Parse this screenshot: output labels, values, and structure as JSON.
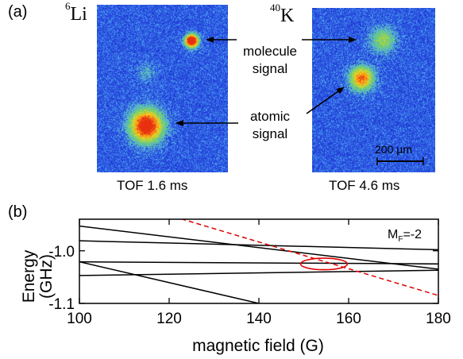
{
  "panel_a": {
    "label": "(a)",
    "left_image": {
      "species_mass": "6",
      "species_symbol": "Li",
      "caption": "TOF 1.6 ms"
    },
    "right_image": {
      "species_mass": "40",
      "species_symbol": "K",
      "caption": "TOF 4.6 ms",
      "scale_bar": "200 µm"
    },
    "annotations": {
      "molecule_line1": "molecule",
      "molecule_line2": "signal",
      "atomic_line1": "atomic",
      "atomic_line2": "signal"
    },
    "colors": {
      "background": "#1c2fd0",
      "noise": "#4aa0ff",
      "cloud_core": "#e83010",
      "cloud_mid": "#ffd21a",
      "cloud_edge": "#6ed46a"
    }
  },
  "panel_b": {
    "label": "(b)",
    "annotation_prefix": "M",
    "annotation_sub": "F",
    "annotation_value": "=-2",
    "colors": {
      "lines": "#000000",
      "dashed": "#e00000",
      "ellipse": "#e00000"
    }
  },
  "chart_data": {
    "type": "line",
    "xlabel": "magnetic field (G)",
    "ylabel_line1": "Energy",
    "ylabel_line2": "(GHz)",
    "xlim": [
      100,
      180
    ],
    "ylim": [
      -1.1,
      -0.94
    ],
    "xticks": [
      100,
      120,
      140,
      160,
      180
    ],
    "yticks": [
      -1.0,
      -1.1
    ],
    "yticklabels": [
      "-1.0",
      "-1.1"
    ],
    "series": [
      {
        "x": [
          100,
          180
        ],
        "y": [
          -0.953,
          -1.035
        ],
        "style": "solid"
      },
      {
        "x": [
          100,
          180
        ],
        "y": [
          -0.981,
          -0.998
        ],
        "style": "solid"
      },
      {
        "x": [
          100,
          180
        ],
        "y": [
          -1.021,
          -1.025
        ],
        "style": "solid"
      },
      {
        "x": [
          100,
          180
        ],
        "y": [
          -1.047,
          -1.037
        ],
        "style": "solid"
      },
      {
        "x": [
          100,
          140
        ],
        "y": [
          -1.021,
          -1.1
        ],
        "style": "solid"
      },
      {
        "x": [
          121,
          180
        ],
        "y": [
          -0.935,
          -1.085
        ],
        "style": "dashed"
      }
    ],
    "highlight_ellipse": {
      "cx": 154.5,
      "cy": -1.025,
      "rx": 5.2,
      "ry": 0.011
    }
  }
}
